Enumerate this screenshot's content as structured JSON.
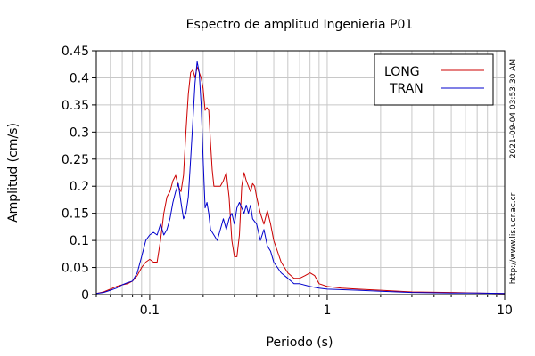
{
  "chart_data": {
    "type": "line",
    "title": "Espectro de amplitud Ingenieria P01",
    "xlabel": "Periodo (s)",
    "ylabel": "Amplitud (cm/s)",
    "x_scale": "log",
    "xlim": [
      0.05,
      10
    ],
    "ylim": [
      0,
      0.45
    ],
    "x_ticks": [
      {
        "value": 0.1,
        "label": "0.1"
      },
      {
        "value": 1,
        "label": "1"
      },
      {
        "value": 10,
        "label": "10"
      }
    ],
    "y_ticks": [
      {
        "value": 0,
        "label": "0"
      },
      {
        "value": 0.05,
        "label": "0.05"
      },
      {
        "value": 0.1,
        "label": "0.1"
      },
      {
        "value": 0.15,
        "label": "0.15"
      },
      {
        "value": 0.2,
        "label": "0.2"
      },
      {
        "value": 0.25,
        "label": "0.25"
      },
      {
        "value": 0.3,
        "label": "0.3"
      },
      {
        "value": 0.35,
        "label": "0.35"
      },
      {
        "value": 0.4,
        "label": "0.4"
      },
      {
        "value": 0.45,
        "label": "0.45"
      }
    ],
    "grid": true,
    "legend_position": "top-right",
    "side_texts": {
      "timestamp": "2021-09-04 03:53:30 AM",
      "url": "http://www.lis.ucr.ac.cr"
    },
    "series": [
      {
        "name": "LONG",
        "color": "#cc0000",
        "points": [
          [
            0.05,
            0.002
          ],
          [
            0.055,
            0.005
          ],
          [
            0.06,
            0.01
          ],
          [
            0.065,
            0.015
          ],
          [
            0.07,
            0.018
          ],
          [
            0.075,
            0.02
          ],
          [
            0.08,
            0.025
          ],
          [
            0.085,
            0.035
          ],
          [
            0.09,
            0.05
          ],
          [
            0.095,
            0.06
          ],
          [
            0.1,
            0.065
          ],
          [
            0.105,
            0.06
          ],
          [
            0.11,
            0.06
          ],
          [
            0.115,
            0.1
          ],
          [
            0.12,
            0.15
          ],
          [
            0.125,
            0.18
          ],
          [
            0.13,
            0.19
          ],
          [
            0.135,
            0.21
          ],
          [
            0.14,
            0.22
          ],
          [
            0.145,
            0.2
          ],
          [
            0.15,
            0.19
          ],
          [
            0.155,
            0.22
          ],
          [
            0.16,
            0.3
          ],
          [
            0.165,
            0.37
          ],
          [
            0.17,
            0.41
          ],
          [
            0.175,
            0.415
          ],
          [
            0.18,
            0.4
          ],
          [
            0.185,
            0.42
          ],
          [
            0.19,
            0.41
          ],
          [
            0.195,
            0.4
          ],
          [
            0.2,
            0.38
          ],
          [
            0.205,
            0.34
          ],
          [
            0.21,
            0.345
          ],
          [
            0.215,
            0.34
          ],
          [
            0.22,
            0.28
          ],
          [
            0.225,
            0.23
          ],
          [
            0.23,
            0.2
          ],
          [
            0.24,
            0.2
          ],
          [
            0.25,
            0.2
          ],
          [
            0.26,
            0.21
          ],
          [
            0.27,
            0.225
          ],
          [
            0.28,
            0.18
          ],
          [
            0.29,
            0.1
          ],
          [
            0.3,
            0.07
          ],
          [
            0.31,
            0.07
          ],
          [
            0.32,
            0.11
          ],
          [
            0.33,
            0.2
          ],
          [
            0.34,
            0.225
          ],
          [
            0.35,
            0.21
          ],
          [
            0.36,
            0.2
          ],
          [
            0.37,
            0.19
          ],
          [
            0.38,
            0.205
          ],
          [
            0.39,
            0.2
          ],
          [
            0.4,
            0.18
          ],
          [
            0.42,
            0.15
          ],
          [
            0.44,
            0.13
          ],
          [
            0.46,
            0.155
          ],
          [
            0.48,
            0.13
          ],
          [
            0.5,
            0.1
          ],
          [
            0.55,
            0.06
          ],
          [
            0.6,
            0.04
          ],
          [
            0.65,
            0.03
          ],
          [
            0.7,
            0.03
          ],
          [
            0.75,
            0.035
          ],
          [
            0.8,
            0.04
          ],
          [
            0.85,
            0.035
          ],
          [
            0.9,
            0.02
          ],
          [
            1.0,
            0.015
          ],
          [
            1.2,
            0.012
          ],
          [
            1.5,
            0.01
          ],
          [
            2.0,
            0.008
          ],
          [
            3.0,
            0.005
          ],
          [
            5.0,
            0.004
          ],
          [
            7.0,
            0.003
          ],
          [
            10.0,
            0.002
          ]
        ]
      },
      {
        "name": "TRAN",
        "color": "#0000cc",
        "points": [
          [
            0.05,
            0.002
          ],
          [
            0.055,
            0.004
          ],
          [
            0.06,
            0.008
          ],
          [
            0.065,
            0.012
          ],
          [
            0.07,
            0.018
          ],
          [
            0.075,
            0.022
          ],
          [
            0.08,
            0.025
          ],
          [
            0.085,
            0.04
          ],
          [
            0.09,
            0.07
          ],
          [
            0.095,
            0.1
          ],
          [
            0.1,
            0.11
          ],
          [
            0.105,
            0.115
          ],
          [
            0.11,
            0.11
          ],
          [
            0.115,
            0.13
          ],
          [
            0.12,
            0.11
          ],
          [
            0.125,
            0.12
          ],
          [
            0.13,
            0.14
          ],
          [
            0.135,
            0.17
          ],
          [
            0.14,
            0.19
          ],
          [
            0.145,
            0.205
          ],
          [
            0.15,
            0.17
          ],
          [
            0.155,
            0.14
          ],
          [
            0.16,
            0.15
          ],
          [
            0.165,
            0.18
          ],
          [
            0.17,
            0.25
          ],
          [
            0.175,
            0.32
          ],
          [
            0.18,
            0.39
          ],
          [
            0.185,
            0.43
          ],
          [
            0.19,
            0.41
          ],
          [
            0.195,
            0.35
          ],
          [
            0.2,
            0.25
          ],
          [
            0.205,
            0.16
          ],
          [
            0.21,
            0.17
          ],
          [
            0.215,
            0.15
          ],
          [
            0.22,
            0.12
          ],
          [
            0.23,
            0.11
          ],
          [
            0.24,
            0.1
          ],
          [
            0.25,
            0.12
          ],
          [
            0.26,
            0.14
          ],
          [
            0.27,
            0.12
          ],
          [
            0.28,
            0.14
          ],
          [
            0.29,
            0.15
          ],
          [
            0.3,
            0.13
          ],
          [
            0.31,
            0.16
          ],
          [
            0.32,
            0.17
          ],
          [
            0.33,
            0.16
          ],
          [
            0.34,
            0.15
          ],
          [
            0.35,
            0.165
          ],
          [
            0.36,
            0.15
          ],
          [
            0.37,
            0.165
          ],
          [
            0.38,
            0.14
          ],
          [
            0.4,
            0.13
          ],
          [
            0.42,
            0.1
          ],
          [
            0.44,
            0.12
          ],
          [
            0.46,
            0.09
          ],
          [
            0.48,
            0.08
          ],
          [
            0.5,
            0.06
          ],
          [
            0.55,
            0.04
          ],
          [
            0.6,
            0.03
          ],
          [
            0.65,
            0.02
          ],
          [
            0.7,
            0.02
          ],
          [
            0.8,
            0.015
          ],
          [
            0.9,
            0.012
          ],
          [
            1.0,
            0.01
          ],
          [
            1.5,
            0.008
          ],
          [
            2.0,
            0.006
          ],
          [
            3.0,
            0.004
          ],
          [
            5.0,
            0.003
          ],
          [
            7.0,
            0.003
          ],
          [
            10.0,
            0.002
          ]
        ]
      }
    ]
  }
}
